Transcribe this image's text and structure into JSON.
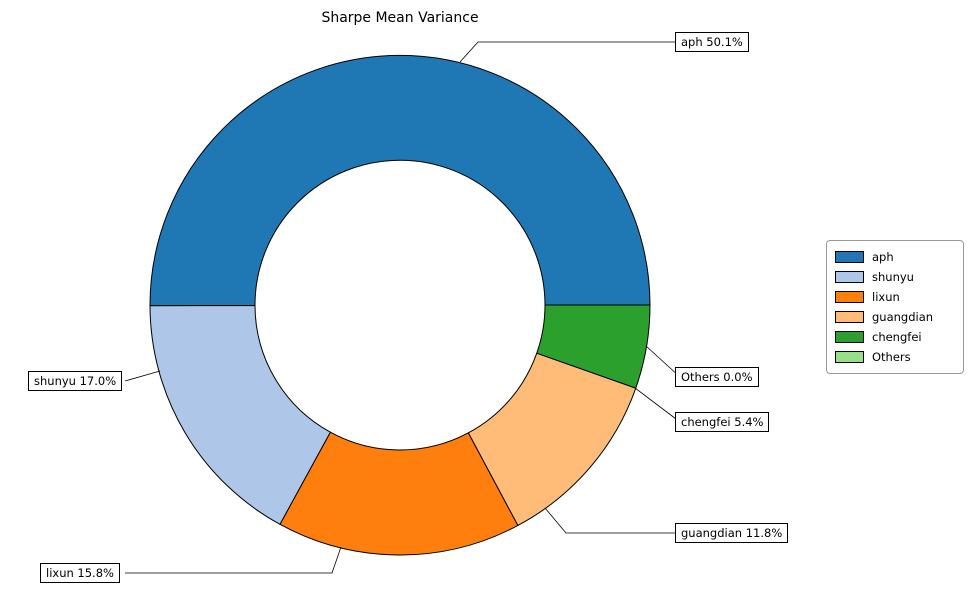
{
  "chart_data": {
    "type": "pie",
    "subtype": "donut",
    "title": "Sharpe Mean Variance",
    "labels": [
      "aph",
      "shunyu",
      "lixun",
      "guangdian",
      "chengfei",
      "Others"
    ],
    "values": [
      50.1,
      17.0,
      15.8,
      11.8,
      5.4,
      0.0
    ],
    "colors": [
      "#1f77b4",
      "#aec7e8",
      "#ff7f0e",
      "#ffbb78",
      "#2ca02c",
      "#98df8a"
    ],
    "annotations": [
      "aph 50.1%",
      "shunyu 17.0%",
      "lixun 15.8%",
      "guangdian 11.8%",
      "chengfei 5.4%",
      "Others 0.0%"
    ],
    "start_angle": 0,
    "direction": "counterclockwise",
    "edge_color": "#000000",
    "legend": {
      "position": "right",
      "labels": [
        "aph",
        "shunyu",
        "lixun",
        "guangdian",
        "chengfei",
        "Others"
      ]
    }
  }
}
